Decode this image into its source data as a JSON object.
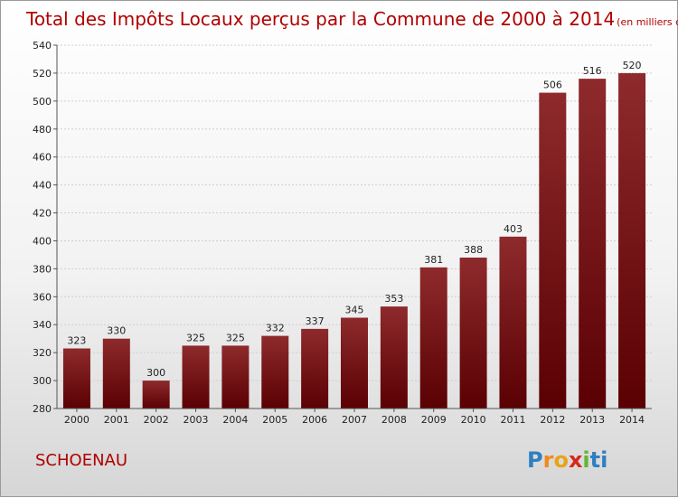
{
  "chart_data": {
    "type": "bar",
    "title": "Total des Impôts Locaux perçus par la Commune de 2000 à 2014",
    "subtitle": "(en milliers d'€)",
    "categories": [
      "2000",
      "2001",
      "2002",
      "2003",
      "2004",
      "2005",
      "2006",
      "2007",
      "2008",
      "2009",
      "2010",
      "2011",
      "2012",
      "2013",
      "2014"
    ],
    "values": [
      323,
      330,
      300,
      325,
      325,
      332,
      337,
      345,
      353,
      381,
      388,
      403,
      506,
      516,
      520
    ],
    "ylim": [
      280,
      540
    ],
    "yticks": [
      280,
      300,
      320,
      340,
      360,
      380,
      400,
      420,
      440,
      460,
      480,
      500,
      520,
      540
    ],
    "grid": true,
    "bar_color": "#7a0c10"
  },
  "commune": "SCHOENAU",
  "logo": {
    "letters": [
      "P",
      "r",
      "o",
      "x",
      "i",
      "t",
      "i"
    ],
    "colors": [
      "#2f7fc1",
      "#f08a1c",
      "#e8a317",
      "#d9261c",
      "#63b534",
      "#2f7fc1",
      "#2f7fc1"
    ]
  }
}
